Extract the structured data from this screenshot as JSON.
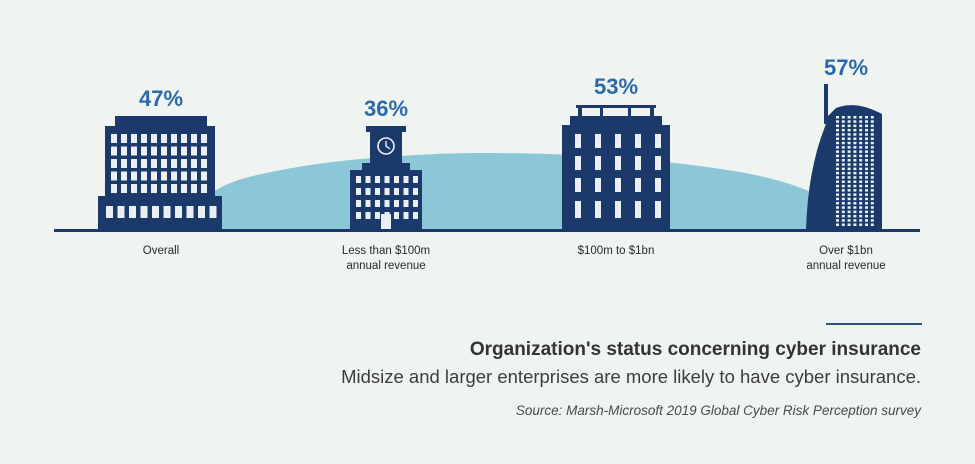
{
  "colors": {
    "background": "#eff4f1",
    "building": "#1b3a6b",
    "window": "#eaf0f2",
    "accent_text": "#2b6aa6",
    "hill": "#8cc7d7",
    "ground": "#1b3a6b"
  },
  "chart_data": {
    "type": "bar",
    "style": "pictogram-buildings",
    "title": "Organization's status concerning cyber insurance",
    "subtitle": "Midsize and larger enterprises are more likely to have cyber insurance.",
    "source": "Source: Marsh-Microsoft 2019 Global Cyber Risk Perception survey",
    "categories": [
      [
        "Overall"
      ],
      [
        "Less than $100m",
        "annual revenue"
      ],
      [
        "$100m to $1bn"
      ],
      [
        "Over $1bn",
        "annual revenue"
      ]
    ],
    "values": [
      47,
      36,
      53,
      57
    ],
    "value_labels": [
      "47%",
      "36%",
      "53%",
      "57%"
    ],
    "unit": "%"
  }
}
